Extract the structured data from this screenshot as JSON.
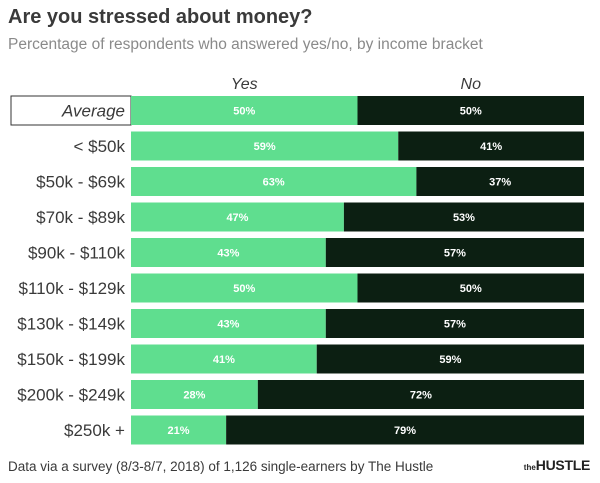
{
  "header": {
    "title": "Are you stressed about money?",
    "subtitle": "Percentage of respondents who answered yes/no, by income bracket"
  },
  "footer": {
    "source": "Data via a survey (8/3-8/7, 2018) of 1,126 single-earners by The Hustle"
  },
  "logo": {
    "the": "the",
    "name": "HUSTLE"
  },
  "colors": {
    "yes": "#5fde8f",
    "no": "#0c1f12",
    "text": "#3a3a3a",
    "highlight_border": "#333333"
  },
  "chart_data": {
    "type": "bar",
    "stacked": true,
    "orientation": "horizontal",
    "title": "Are you stressed about money?",
    "subtitle": "Percentage of respondents who answered yes/no, by income bracket",
    "categories": [
      "Average",
      "< $50k",
      "$50k - $69k",
      "$70k - $89k",
      "$90k - $110k",
      "$110k - $129k",
      "$130k - $149k",
      "$150k - $199k",
      "$200k - $249k",
      "$250k +"
    ],
    "series": [
      {
        "name": "Yes",
        "values": [
          50,
          59,
          63,
          47,
          43,
          50,
          43,
          41,
          28,
          21
        ]
      },
      {
        "name": "No",
        "values": [
          50,
          41,
          37,
          53,
          57,
          50,
          57,
          59,
          72,
          79
        ]
      }
    ],
    "value_suffix": "%",
    "legend_position": "top",
    "highlighted_category": "Average"
  }
}
